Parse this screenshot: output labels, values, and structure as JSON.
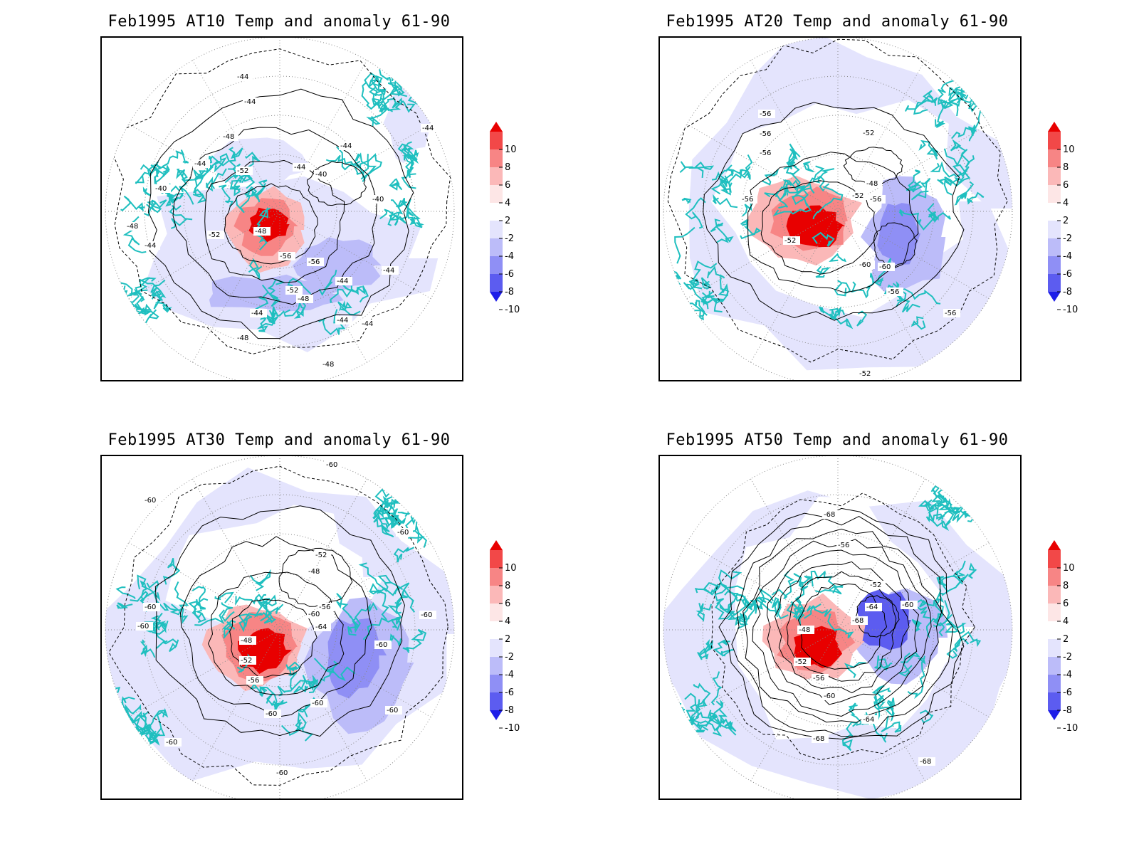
{
  "panels": [
    {
      "title": "Feb1995 AT10 Temp and anomaly 61-90",
      "contour_labels": [
        "-44",
        "-44",
        "-48",
        "-44",
        "-44",
        "-52",
        "-40",
        "-44",
        "-40",
        "-48",
        "-44",
        "-52",
        "-48",
        "-56",
        "-56",
        "-52",
        "-48",
        "-44",
        "-44",
        "-44",
        "-44",
        "-48",
        "-44",
        "-44",
        "-40",
        "-48"
      ]
    },
    {
      "title": "Feb1995 AT20 Temp and anomaly 61-90",
      "contour_labels": [
        "-56",
        "-56",
        "-56",
        "-52",
        "-48",
        "-56",
        "-52",
        "-56",
        "-52",
        "-60",
        "-60",
        "-56",
        "-56",
        "-52"
      ]
    },
    {
      "title": "Feb1995 AT30 Temp and anomaly 61-90",
      "contour_labels": [
        "-60",
        "-60",
        "-60",
        "-52",
        "-48",
        "-60",
        "-60",
        "-56",
        "-60",
        "-64",
        "-48",
        "-52",
        "-56",
        "-60",
        "-60",
        "-60",
        "-60",
        "-60",
        "-60",
        "-60"
      ]
    },
    {
      "title": "Feb1995 AT50 Temp and anomaly 61-90",
      "contour_labels": [
        "-68",
        "-56",
        "-52",
        "-64",
        "-60",
        "-68",
        "-48",
        "-52",
        "-56",
        "-60",
        "-64",
        "-68",
        "-68"
      ]
    }
  ],
  "colorbar": {
    "labels": [
      "10",
      "8",
      "6",
      "4",
      "2",
      "-2",
      "-4",
      "-6",
      "-8",
      "-10"
    ],
    "colors": [
      "#e80000",
      "#f24848",
      "#f78585",
      "#fbb8b8",
      "#fde6e6",
      "#ffffff",
      "#e4e4fd",
      "#bcbcf9",
      "#8f8ff5",
      "#5c5cf0",
      "#1e1ee8"
    ]
  },
  "colors": {
    "coast": "#1fbfbf",
    "contour": "#000000",
    "grid": "#8a8a8a"
  }
}
